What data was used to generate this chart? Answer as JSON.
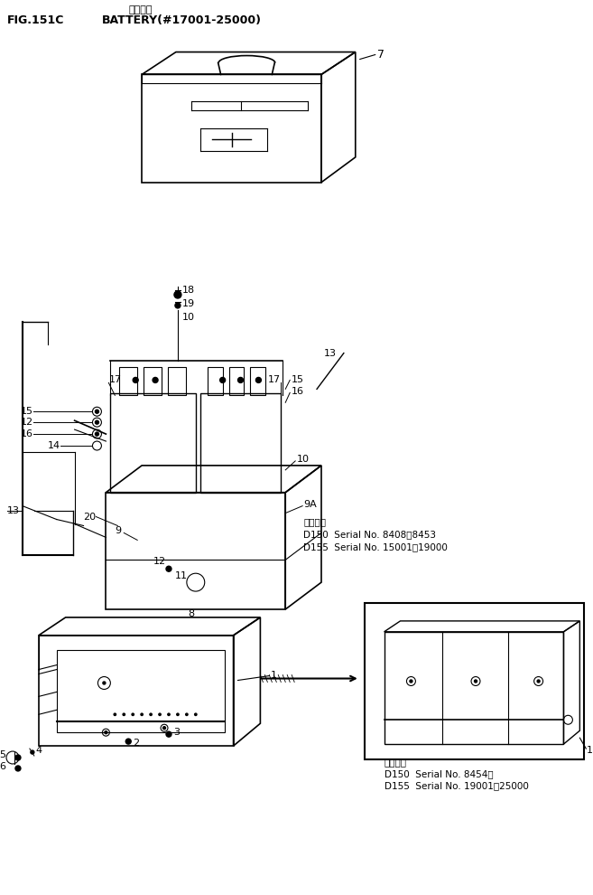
{
  "bg_color": "#ffffff",
  "text_color": "#000000",
  "line_color": "#000000",
  "fig_width": 6.57,
  "fig_height": 9.9,
  "dpi": 100,
  "header_jp": "バッテリ",
  "header_fig": "FIG.151C",
  "header_title": "BATTERY(#17001-25000)",
  "note1_label": "適用番号",
  "note1_line1": "D150  Serial No. 8408～8453",
  "note1_line2": "D155  Serial No. 15001～19000",
  "note2_label": "適用番号",
  "note2_line1": "D150  Serial No. 8454～",
  "note2_line2": "D155  Serial No. 19001～25000"
}
